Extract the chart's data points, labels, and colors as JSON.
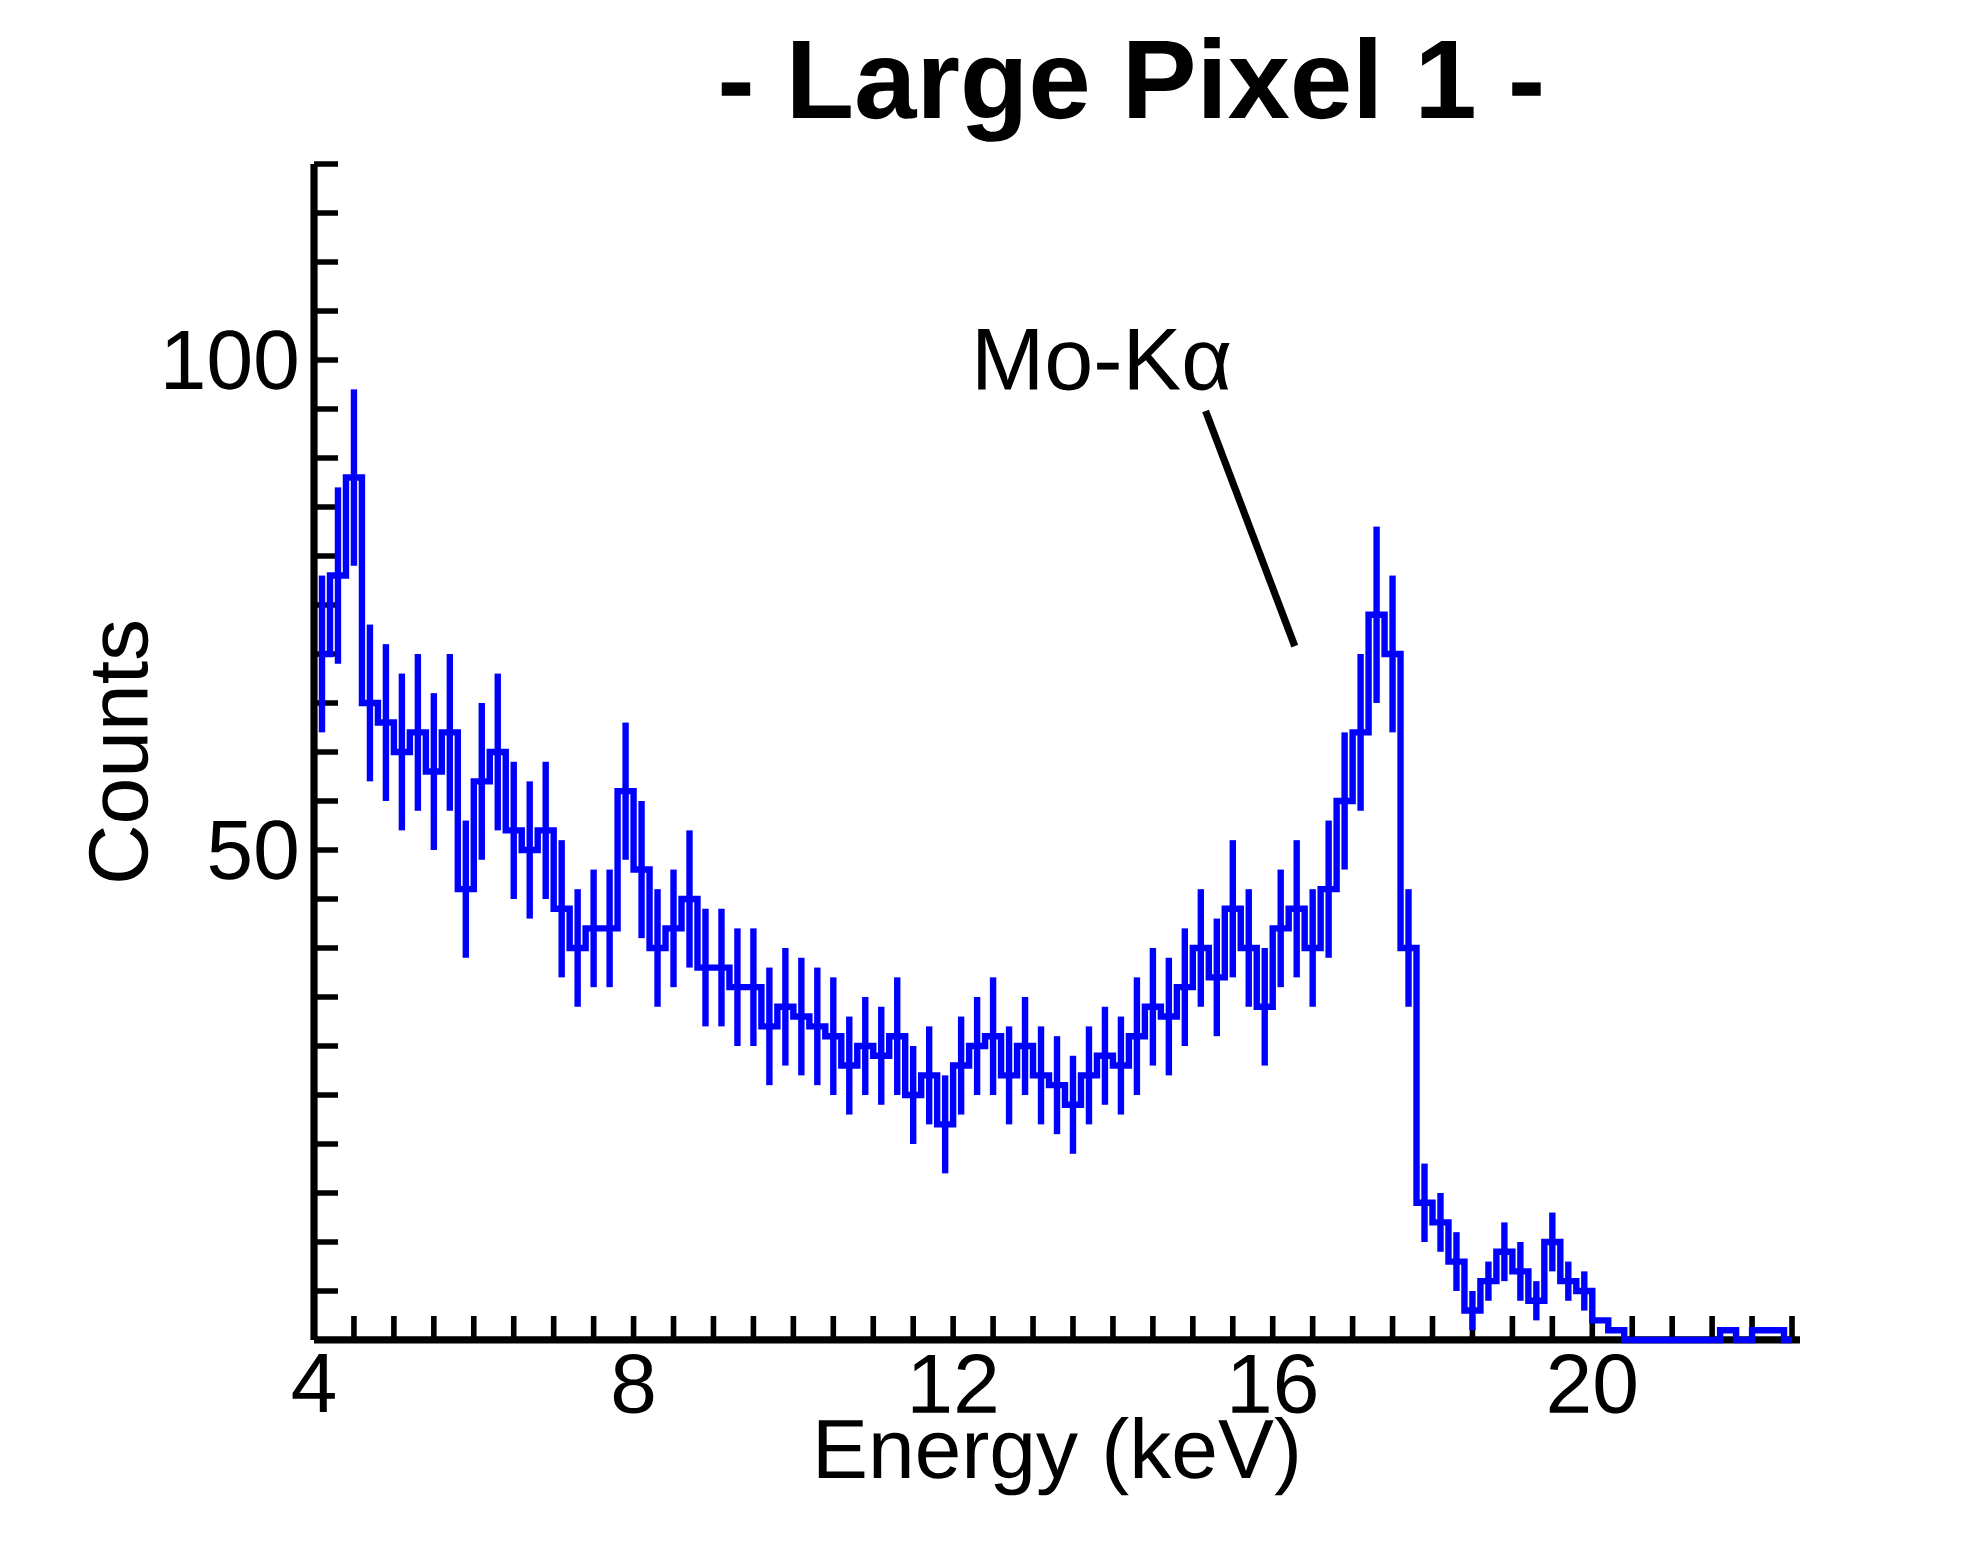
{
  "chart_data": {
    "type": "step",
    "title": "- Large Pixel 1 -",
    "xlabel": "Energy (keV)",
    "ylabel": "Counts",
    "color": "#0000ff",
    "x": [
      4.1,
      4.3,
      4.5,
      4.7,
      4.9,
      5.1,
      5.3,
      5.5,
      5.7,
      5.9,
      6.1,
      6.3,
      6.5,
      6.7,
      6.9,
      7.1,
      7.3,
      7.5,
      7.7,
      7.9,
      8.1,
      8.3,
      8.5,
      8.7,
      8.9,
      9.1,
      9.3,
      9.5,
      9.7,
      9.9,
      10.1,
      10.3,
      10.5,
      10.7,
      10.9,
      11.1,
      11.3,
      11.5,
      11.7,
      11.9,
      12.1,
      12.3,
      12.5,
      12.7,
      12.9,
      13.1,
      13.3,
      13.5,
      13.7,
      13.9,
      14.1,
      14.3,
      14.5,
      14.7,
      14.9,
      15.1,
      15.3,
      15.5,
      15.7,
      15.9,
      16.1,
      16.3,
      16.5,
      16.7,
      16.9,
      17.1,
      17.3,
      17.5,
      17.7,
      17.9,
      18.1,
      18.3,
      18.5,
      18.7,
      18.9,
      19.1,
      19.3,
      19.5,
      19.7,
      19.9,
      20.1,
      20.3,
      20.5,
      20.7,
      20.9,
      21.1,
      21.3,
      21.5,
      21.7,
      21.9,
      22.1,
      22.3,
      22.5
    ],
    "values": [
      70,
      78,
      88,
      65,
      63,
      60,
      62,
      58,
      62,
      46,
      57,
      60,
      52,
      50,
      52,
      44,
      40,
      42,
      42,
      56,
      48,
      40,
      42,
      45,
      38,
      38,
      36,
      36,
      32,
      34,
      33,
      32,
      31,
      28,
      30,
      29,
      31,
      25,
      27,
      22,
      28,
      30,
      31,
      27,
      30,
      27,
      26,
      24,
      27,
      29,
      28,
      31,
      34,
      33,
      36,
      40,
      37,
      44,
      40,
      34,
      42,
      44,
      40,
      46,
      55,
      62,
      74,
      70,
      40,
      14,
      12,
      8,
      3,
      6,
      9,
      7,
      4,
      10,
      6,
      5,
      2,
      1,
      0,
      0,
      0,
      0,
      0,
      0,
      1,
      0,
      1,
      1,
      0
    ],
    "errors": [
      8,
      9,
      9,
      8,
      8,
      8,
      8,
      8,
      8,
      7,
      8,
      8,
      7,
      7,
      7,
      7,
      6,
      6,
      6,
      7,
      7,
      6,
      6,
      7,
      6,
      6,
      6,
      6,
      6,
      6,
      6,
      6,
      6,
      5,
      5,
      5,
      6,
      5,
      5,
      5,
      5,
      5,
      6,
      5,
      5,
      5,
      5,
      5,
      5,
      5,
      5,
      6,
      6,
      6,
      6,
      6,
      6,
      7,
      6,
      6,
      6,
      7,
      6,
      7,
      7,
      8,
      9,
      8,
      6,
      4,
      3,
      3,
      2,
      2,
      3,
      3,
      2,
      3,
      2,
      2,
      null,
      null,
      null,
      null,
      null,
      null,
      null,
      null,
      null,
      null,
      null,
      null,
      null
    ],
    "annotations": [
      "Mo-Kα"
    ],
    "xlim": [
      4,
      22.6
    ],
    "ylim": [
      0,
      120
    ],
    "xticks": [
      4,
      {
        "value": 4.5,
        "label": null
      },
      {
        "value": 5,
        "label": null
      },
      {
        "value": 5.5,
        "label": null
      },
      {
        "value": 6,
        "label": null
      },
      {
        "value": 6.5,
        "label": null
      },
      {
        "value": 7,
        "label": null
      },
      {
        "value": 7.5,
        "label": null
      },
      8,
      {
        "value": 8.5,
        "label": null
      },
      {
        "value": 9,
        "label": null
      },
      {
        "value": 9.5,
        "label": null
      },
      {
        "value": 10,
        "label": null
      },
      {
        "value": 10.5,
        "label": null
      },
      {
        "value": 11,
        "label": null
      },
      {
        "value": 11.5,
        "label": null
      },
      12,
      {
        "value": 12.5,
        "label": null
      },
      {
        "value": 13,
        "label": null
      },
      {
        "value": 13.5,
        "label": null
      },
      {
        "value": 14,
        "label": null
      },
      {
        "value": 14.5,
        "label": null
      },
      {
        "value": 15,
        "label": null
      },
      {
        "value": 15.5,
        "label": null
      },
      16,
      {
        "value": 16.5,
        "label": null
      },
      {
        "value": 17,
        "label": null
      },
      {
        "value": 17.5,
        "label": null
      },
      {
        "value": 18,
        "label": null
      },
      {
        "value": 18.5,
        "label": null
      },
      {
        "value": 19,
        "label": null
      },
      {
        "value": 19.5,
        "label": null
      },
      20,
      {
        "value": 20.5,
        "label": null
      },
      {
        "value": 21,
        "label": null
      },
      {
        "value": 21.5,
        "label": null
      },
      {
        "value": 22,
        "label": null
      },
      {
        "value": 22.5,
        "label": null
      }
    ],
    "yticks": [
      {
        "value": 5,
        "label": null
      },
      {
        "value": 10,
        "label": null
      },
      {
        "value": 15,
        "label": null
      },
      {
        "value": 20,
        "label": null
      },
      {
        "value": 25,
        "label": null
      },
      {
        "value": 30,
        "label": null
      },
      {
        "value": 35,
        "label": null
      },
      {
        "value": 40,
        "label": null
      },
      {
        "value": 45,
        "label": null
      },
      50,
      {
        "value": 55,
        "label": null
      },
      {
        "value": 60,
        "label": null
      },
      {
        "value": 65,
        "label": null
      },
      {
        "value": 70,
        "label": null
      },
      {
        "value": 75,
        "label": null
      },
      {
        "value": 80,
        "label": null
      },
      {
        "value": 85,
        "label": null
      },
      {
        "value": 90,
        "label": null
      },
      {
        "value": 95,
        "label": null
      },
      100,
      {
        "value": 105,
        "label": null
      },
      {
        "value": 110,
        "label": null
      },
      {
        "value": 115,
        "label": null
      },
      {
        "value": 120,
        "label": null
      }
    ],
    "grid": false
  }
}
